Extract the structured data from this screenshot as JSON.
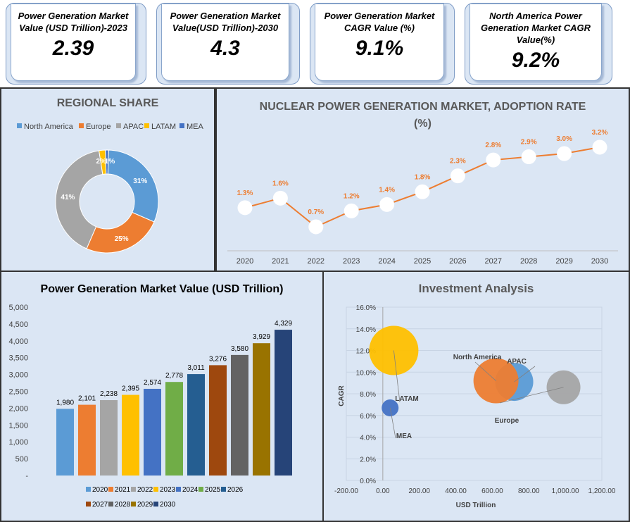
{
  "kpis": [
    {
      "title": "Power Generation Market Value (USD Trillion)-2023",
      "value": "2.39"
    },
    {
      "title": "Power Generation Market Value(USD Trillion)-2030",
      "value": "4.3"
    },
    {
      "title": "Power Generation Market CAGR  Value (%)",
      "value": "9.1%"
    },
    {
      "title": "North America Power Generation Market CAGR Value(%)",
      "value": "9.2%"
    }
  ],
  "chart_data": [
    {
      "type": "pie",
      "title": "REGIONAL SHARE",
      "categories": [
        "North America",
        "Europe",
        "APAC",
        "LATAM",
        "MEA"
      ],
      "values": [
        31,
        25,
        41,
        2,
        1
      ],
      "data_labels": [
        "31%",
        "25%",
        "41%",
        "2%",
        "1%"
      ],
      "colors": [
        "#5b9bd5",
        "#ed7d31",
        "#a5a5a5",
        "#ffc000",
        "#4472c4"
      ],
      "legend": "top"
    },
    {
      "type": "line",
      "title": "NUCLEAR POWER GENERATION MARKET, ADOPTION RATE (%)",
      "categories": [
        "2020",
        "2021",
        "2022",
        "2023",
        "2024",
        "2025",
        "2026",
        "2027",
        "2028",
        "2029",
        "2030"
      ],
      "values": [
        1.3,
        1.6,
        0.7,
        1.2,
        1.4,
        1.8,
        2.3,
        2.8,
        2.9,
        3.0,
        3.2
      ],
      "data_labels": [
        "1.3%",
        "1.6%",
        "0.7%",
        "1.2%",
        "1.4%",
        "1.8%",
        "2.3%",
        "2.8%",
        "2.9%",
        "3.0%",
        "3.2%"
      ],
      "color": "#ed7d31"
    },
    {
      "type": "bar",
      "title": "Power Generation Market Value (USD Trillion)",
      "categories": [
        "2020",
        "2021",
        "2022",
        "2023",
        "2024",
        "2025",
        "2026",
        "2027",
        "2028",
        "2029",
        "2030"
      ],
      "values": [
        1980,
        2101,
        2238,
        2395,
        2574,
        2778,
        3011,
        3276,
        3580,
        3929,
        4329
      ],
      "data_labels": [
        "1,980",
        "2,101",
        "2,238",
        "2,395",
        "2,574",
        "2,778",
        "3,011",
        "3,276",
        "3,580",
        "3,929",
        "4,329"
      ],
      "colors": [
        "#5b9bd5",
        "#ed7d31",
        "#a5a5a5",
        "#ffc000",
        "#4472c4",
        "#70ad47",
        "#255e91",
        "#9e480e",
        "#636363",
        "#997300",
        "#264478"
      ],
      "ylim": [
        0,
        5000
      ],
      "yticks": [
        "-",
        "500",
        "1,000",
        "1,500",
        "2,000",
        "2,500",
        "3,000",
        "3,500",
        "4,000",
        "4,500",
        "5,000"
      ],
      "legend": "bottom"
    },
    {
      "type": "scatter",
      "title": "Investment Analysis",
      "xlabel": "USD Trillion",
      "ylabel": "CAGR",
      "xlim": [
        -200,
        1200
      ],
      "ylim": [
        0,
        16
      ],
      "xticks": [
        "-200.00",
        "0.00",
        "200.00",
        "400.00",
        "600.00",
        "800.00",
        "1,000.00",
        "1,200.00"
      ],
      "yticks": [
        "0.0%",
        "2.0%",
        "4.0%",
        "6.0%",
        "8.0%",
        "10.0%",
        "12.0%",
        "14.0%",
        "16.0%"
      ],
      "points": [
        {
          "name": "LATAM",
          "x": 60,
          "y": 12.0,
          "size": 3.5,
          "color": "#ffc000"
        },
        {
          "name": "MEA",
          "x": 40,
          "y": 6.7,
          "size": 1.2,
          "color": "#4472c4"
        },
        {
          "name": "APAC",
          "x": 720,
          "y": 9.1,
          "size": 2.7,
          "color": "#5b9bd5"
        },
        {
          "name": "North America",
          "x": 620,
          "y": 9.2,
          "size": 3.2,
          "color": "#ed7d31"
        },
        {
          "name": "Europe",
          "x": 990,
          "y": 8.6,
          "size": 2.4,
          "color": "#a5a5a5"
        }
      ]
    }
  ]
}
